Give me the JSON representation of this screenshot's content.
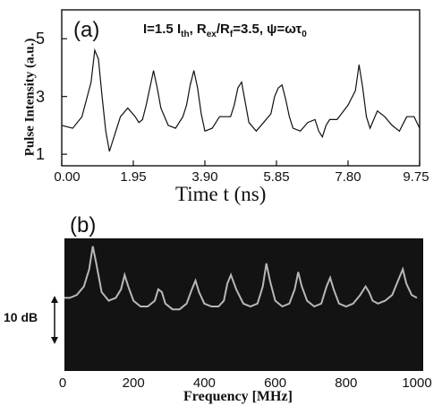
{
  "chart_data": [
    {
      "type": "line",
      "panel_label": "(a)",
      "annotation": {
        "I_part": "I=1.5 I",
        "I_sub": "th",
        "R_part": ",  R",
        "R_sub1": "ex",
        "R_mid": "/R",
        "R_sub2": "f",
        "R_val": "=3.5,  ",
        "psi_part": "ψ=ωτ",
        "psi_sub": "0"
      },
      "xlabel": "Time t (ns)",
      "ylabel": "Pulse Intensity (a.u.)",
      "xlim": [
        0,
        9.75
      ],
      "ylim": [
        0.6,
        6.0
      ],
      "xticks": [
        "0.00",
        "1.95",
        "3.90",
        "5.85",
        "7.80",
        "9.75"
      ],
      "yticks": [
        "1",
        "3",
        "5"
      ],
      "series": [
        {
          "x": [
            0.0,
            0.3,
            0.55,
            0.8,
            0.9,
            1.0,
            1.1,
            1.2,
            1.3,
            1.4,
            1.6,
            1.8,
            2.0,
            2.1,
            2.2,
            2.3,
            2.4,
            2.5,
            2.6,
            2.7,
            2.9,
            3.1,
            3.3,
            3.4,
            3.5,
            3.6,
            3.7,
            3.8,
            3.9,
            4.1,
            4.3,
            4.5,
            4.6,
            4.7,
            4.8,
            4.9,
            5.0,
            5.1,
            5.3,
            5.5,
            5.7,
            5.8,
            5.9,
            6.0,
            6.1,
            6.2,
            6.3,
            6.5,
            6.7,
            6.9,
            7.0,
            7.1,
            7.2,
            7.3,
            7.5,
            7.8,
            8.0,
            8.1,
            8.2,
            8.3,
            8.4,
            8.5,
            8.6,
            8.8,
            9.0,
            9.2,
            9.4,
            9.6,
            9.75
          ],
          "y": [
            2.0,
            1.9,
            2.3,
            3.5,
            4.6,
            4.3,
            3.0,
            1.8,
            1.1,
            1.5,
            2.3,
            2.6,
            2.3,
            2.1,
            2.2,
            2.7,
            3.3,
            3.9,
            3.3,
            2.6,
            2.0,
            1.9,
            2.3,
            2.7,
            3.4,
            3.9,
            3.3,
            2.4,
            1.8,
            1.9,
            2.3,
            2.3,
            2.3,
            2.7,
            3.3,
            3.5,
            2.8,
            2.1,
            1.8,
            2.1,
            2.4,
            3.0,
            3.3,
            3.4,
            2.9,
            2.3,
            1.9,
            1.8,
            2.1,
            2.2,
            1.8,
            1.6,
            2.0,
            2.2,
            2.2,
            2.7,
            3.2,
            4.1,
            3.3,
            2.3,
            1.9,
            2.2,
            2.5,
            2.3,
            2.0,
            1.8,
            2.3,
            2.3,
            1.9
          ]
        }
      ]
    },
    {
      "type": "line",
      "panel_label": "(b)",
      "xlabel": "Frequency [MHz]",
      "xlim": [
        0,
        1000
      ],
      "xticks": [
        "0",
        "200",
        "400",
        "600",
        "800",
        "1000"
      ],
      "scale_bar_label": "10 dB",
      "background": "#131313",
      "trace_color": "#b8b8b8",
      "series": [
        {
          "x": [
            0,
            20,
            40,
            60,
            75,
            85,
            95,
            110,
            130,
            150,
            165,
            175,
            185,
            200,
            220,
            240,
            260,
            270,
            280,
            290,
            310,
            330,
            350,
            365,
            375,
            385,
            400,
            420,
            440,
            455,
            465,
            475,
            490,
            510,
            530,
            550,
            565,
            575,
            585,
            600,
            620,
            640,
            655,
            665,
            675,
            690,
            710,
            730,
            745,
            755,
            765,
            780,
            800,
            820,
            840,
            855,
            865,
            875,
            890,
            910,
            930,
            950,
            960,
            970,
            985,
            1000
          ],
          "y": [
            18,
            18,
            19,
            22,
            28,
            36,
            30,
            20,
            17,
            18,
            21,
            26,
            22,
            17,
            15,
            15,
            17,
            21,
            20,
            16,
            14,
            14,
            16,
            21,
            24,
            20,
            16,
            15,
            15,
            17,
            23,
            26,
            21,
            16,
            15,
            16,
            22,
            30,
            24,
            17,
            15,
            16,
            21,
            27,
            22,
            17,
            15,
            16,
            22,
            25,
            21,
            16,
            15,
            16,
            19,
            22,
            20,
            17,
            16,
            17,
            19,
            25,
            28,
            23,
            19,
            18
          ]
        }
      ]
    }
  ]
}
